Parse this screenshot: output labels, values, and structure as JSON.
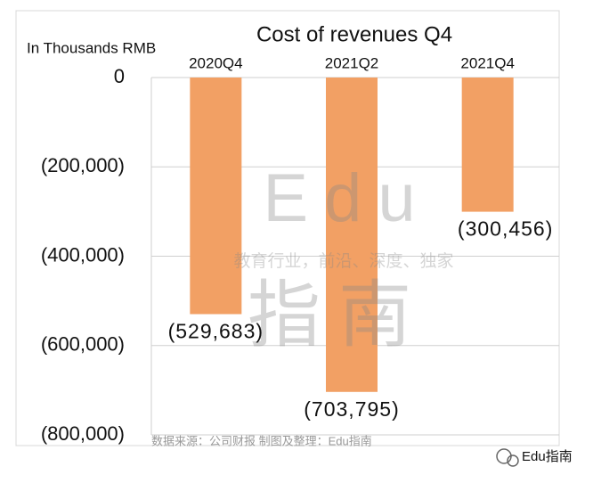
{
  "chart_data": {
    "type": "bar",
    "title": "Cost of revenues Q4",
    "y_label": "In Thousands RMB",
    "categories": [
      "2020Q4",
      "2021Q2",
      "2021Q4"
    ],
    "values": [
      -529683,
      -703795,
      -300456
    ],
    "value_labels": [
      "(529,683)",
      "(703,795)",
      "(300,456)"
    ],
    "color": "#f2a064",
    "ylim": [
      -800000,
      0
    ],
    "yticks": [
      0,
      {
        "value": -200000,
        "label": "(200,000)"
      },
      {
        "value": -400000,
        "label": "(400,000)"
      },
      {
        "value": -600000,
        "label": "(600,000)"
      },
      {
        "value": -800000,
        "label": "(800,000)"
      }
    ],
    "grid": true,
    "source": "数据来源：公司财报   制图及整理：Edu指南",
    "watermark_title": "Edu",
    "watermark_subtitle": "教育行业，前沿、深度、独家",
    "watermark_cn": "指南",
    "brand": "Edu指南"
  }
}
